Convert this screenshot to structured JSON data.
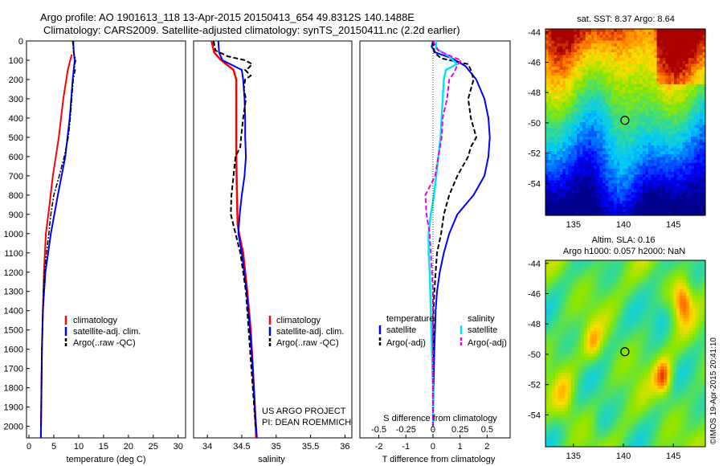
{
  "title": {
    "line1": "Argo profile: AO 1901613_118 13-Apr-2015 20150413_654 49.8312S 140.1488E",
    "line2": "Climatology: CARS2009. Satellite-adjusted climatology: synTS_20150411.nc (2.2d earlier)"
  },
  "colors": {
    "climatology": "#ff0000",
    "satellite": "#0000ff",
    "argo": "#000000",
    "salinity_satellite": "#00e5ee",
    "salinity_argo": "#ee00ee"
  },
  "chart_data": [
    {
      "type": "line",
      "name": "temperature",
      "xlabel": "temperature (deg C)",
      "ylabel": "",
      "xlim": [
        -0.5,
        31.5
      ],
      "ylim": [
        0,
        2060
      ],
      "xticks": [
        "0",
        "5",
        "10",
        "15",
        "20",
        "25",
        "30"
      ],
      "yticks": [
        "0",
        "100",
        "200",
        "300",
        "400",
        "500",
        "600",
        "700",
        "800",
        "900",
        "1000",
        "1100",
        "1200",
        "1300",
        "1400",
        "1500",
        "1600",
        "1700",
        "1800",
        "1900",
        "2000"
      ],
      "legend": [
        "climatology",
        "satellite-adj. clim.",
        "Argo(..raw -QC)"
      ],
      "series": [
        {
          "name": "climatology",
          "y": [
            70,
            150,
            300,
            500,
            700,
            900,
            1000,
            1200,
            1400,
            1600,
            1800,
            2060
          ],
          "x": [
            8.6,
            7.8,
            6.9,
            6.0,
            4.8,
            3.9,
            3.4,
            3.0,
            2.8,
            2.6,
            2.5,
            2.4
          ]
        },
        {
          "name": "satellite-adj. clim.",
          "y": [
            0,
            60,
            100,
            200,
            400,
            600,
            800,
            1000,
            1200,
            1400,
            1600,
            1800,
            2060
          ],
          "x": [
            8.9,
            9.0,
            9.2,
            8.8,
            8.2,
            7.3,
            5.8,
            4.4,
            3.3,
            2.8,
            2.6,
            2.5,
            2.4
          ]
        },
        {
          "name": "Argo(..raw -QC)",
          "y": [
            0,
            60,
            100,
            130,
            150,
            200,
            300,
            400,
            500,
            600,
            700,
            800,
            900,
            1000,
            1100,
            1200,
            1300,
            1400,
            1500,
            1600,
            1700,
            1800,
            1900,
            2000
          ],
          "x": [
            8.8,
            9.0,
            9.4,
            9.1,
            9.3,
            8.9,
            8.6,
            8.3,
            7.9,
            7.1,
            6.1,
            5.0,
            4.4,
            4.0,
            3.5,
            3.1,
            2.9,
            2.8,
            2.7,
            2.6,
            2.55,
            2.5,
            2.45,
            2.4
          ]
        }
      ]
    },
    {
      "type": "line",
      "name": "salinity",
      "xlabel": "salinity",
      "ylabel": "",
      "xlim": [
        33.8,
        36.1
      ],
      "ylim": [
        0,
        2060
      ],
      "xticks": [
        "34",
        "34.5",
        "35",
        "35.5",
        "36"
      ],
      "legend": [
        "climatology",
        "satellite-adj. clim.",
        "Argo(..raw -QC)"
      ],
      "annotation": [
        "US ARGO PROJECT",
        "PI: DEAN ROEMMICH"
      ],
      "series": [
        {
          "name": "climatology",
          "y": [
            0,
            60,
            100,
            150,
            200,
            400,
            600,
            800,
            950,
            1000,
            1100,
            1300,
            1500,
            1700,
            1900,
            2060
          ],
          "x": [
            34.06,
            34.1,
            34.2,
            34.38,
            34.42,
            34.42,
            34.42,
            34.43,
            34.44,
            34.46,
            34.52,
            34.58,
            34.63,
            34.66,
            34.69,
            34.71
          ]
        },
        {
          "name": "satellite-adj. clim.",
          "y": [
            0,
            60,
            100,
            150,
            200,
            300,
            400,
            500,
            600,
            700,
            800,
            900,
            1000,
            1100,
            1300,
            1500,
            1700,
            1900,
            2060
          ],
          "x": [
            34.16,
            34.17,
            34.22,
            34.5,
            34.52,
            34.54,
            34.55,
            34.55,
            34.56,
            34.54,
            34.5,
            34.47,
            34.45,
            34.5,
            34.57,
            34.62,
            34.66,
            34.69,
            34.72
          ]
        },
        {
          "name": "Argo(..raw -QC)",
          "y": [
            0,
            50,
            80,
            100,
            120,
            140,
            150,
            180,
            200,
            250,
            300,
            400,
            500,
            550,
            600,
            700,
            800,
            900,
            1000,
            1100,
            1200,
            1300,
            1500,
            1700,
            1900,
            2000
          ],
          "x": [
            34.09,
            34.12,
            34.3,
            34.55,
            34.65,
            34.6,
            34.55,
            34.63,
            34.55,
            34.53,
            34.56,
            34.52,
            34.49,
            34.48,
            34.41,
            34.38,
            34.35,
            34.34,
            34.41,
            34.48,
            34.52,
            34.56,
            34.6,
            34.64,
            34.68,
            34.7
          ]
        }
      ]
    },
    {
      "type": "line",
      "name": "difference",
      "xlabel": "T difference from climatology",
      "xlabel_top": "S difference from climatology",
      "xlim": [
        -2.7,
        2.85
      ],
      "ylim": [
        0,
        2060
      ],
      "xticks": [
        "-2",
        "-1",
        "0",
        "1",
        "2"
      ],
      "xticks_top": [
        "-0.5",
        "-0.25",
        "0",
        "0.25",
        "0.5"
      ],
      "legend_temperature": [
        "temperature",
        "satellite",
        "Argo(-adj)"
      ],
      "legend_salinity": [
        "salinity",
        "satellite",
        "Argo(-adj)"
      ],
      "series": [
        {
          "name": "temperature satellite",
          "y": [
            0,
            30,
            60,
            90,
            130,
            200,
            300,
            400,
            500,
            600,
            700,
            800,
            900,
            1000,
            1100,
            1200,
            1300,
            1400,
            1600,
            1800,
            2000
          ],
          "x": [
            0,
            -0.05,
            0.1,
            0.7,
            1.2,
            1.6,
            1.9,
            2.05,
            2.1,
            2.05,
            1.9,
            1.5,
            0.9,
            0.6,
            0.4,
            0.25,
            0.15,
            0.1,
            0.05,
            0.02,
            0
          ]
        },
        {
          "name": "temperature Argo(-adj)",
          "y": [
            0,
            60,
            90,
            120,
            150,
            200,
            300,
            400,
            500,
            550,
            600,
            700,
            800,
            900,
            1000,
            1100,
            1200,
            1300,
            1400,
            1600,
            1800,
            2000
          ],
          "x": [
            0,
            0.05,
            0.3,
            1.3,
            1.4,
            1.5,
            1.3,
            1.4,
            1.6,
            1.4,
            1.3,
            0.9,
            0.6,
            0.4,
            0.3,
            0.15,
            0.1,
            0.05,
            0.02,
            0.01,
            0,
            0
          ]
        },
        {
          "name": "salinity satellite",
          "y": [
            0,
            40,
            80,
            120,
            150,
            200,
            300,
            400,
            500,
            600,
            700,
            800,
            900,
            1000,
            1100,
            1200,
            1400,
            1600,
            1800,
            2000
          ],
          "x": [
            0.03,
            0.03,
            0.15,
            0.22,
            0.12,
            0.1,
            0.09,
            0.08,
            0.07,
            0.05,
            0.03,
            0.01,
            -0.02,
            -0.04,
            -0.04,
            -0.03,
            -0.02,
            -0.01,
            0,
            0
          ]
        },
        {
          "name": "salinity Argo(-adj)",
          "y": [
            0,
            50,
            80,
            100,
            130,
            160,
            200,
            300,
            400,
            500,
            600,
            700,
            800,
            900,
            1000,
            1100,
            1200,
            1300,
            1500,
            1700,
            2000
          ],
          "x": [
            0,
            0.05,
            0.17,
            0.26,
            0.22,
            0.2,
            0.15,
            0.13,
            0.09,
            0.08,
            0.05,
            0.02,
            -0.07,
            -0.06,
            -0.03,
            -0.02,
            -0.01,
            0,
            0,
            0,
            0
          ]
        }
      ]
    },
    {
      "type": "heatmap",
      "name": "sst_map",
      "title": "sat. SST: 8.37 Argo: 8.64",
      "xlim": [
        132.2,
        148.2
      ],
      "ylim": [
        -56.1,
        -43.8
      ],
      "xticks": [
        "135",
        "140",
        "145"
      ],
      "yticks": [
        "-44",
        "-46",
        "-48",
        "-50",
        "-52",
        "-54"
      ],
      "marker": {
        "lon": 140.15,
        "lat": -49.83
      }
    },
    {
      "type": "heatmap",
      "name": "sla_map",
      "title": "Altim. SLA: 0.16",
      "subtitle": "Argo h1000: 0.057 h2000: NaN",
      "xlim": [
        132.2,
        148.2
      ],
      "ylim": [
        -56.1,
        -43.8
      ],
      "xticks": [
        "135",
        "140",
        "145"
      ],
      "yticks": [
        "-44",
        "-46",
        "-48",
        "-50",
        "-52",
        "-54"
      ],
      "marker": {
        "lon": 140.15,
        "lat": -49.83
      }
    }
  ],
  "credit": "©IMOS 19-Apr-2015 20:41:10"
}
